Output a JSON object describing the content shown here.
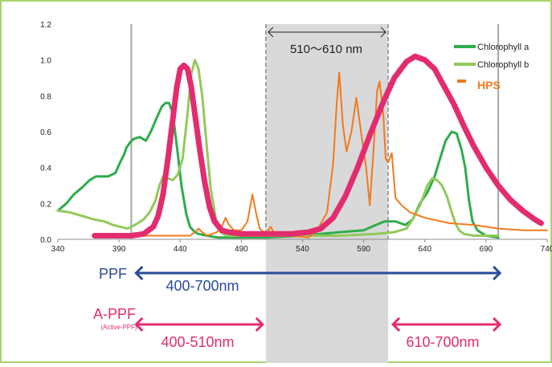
{
  "chart_data": {
    "type": "line",
    "xlim": [
      340,
      740
    ],
    "ylim": [
      0.0,
      1.2
    ],
    "x_ticks": [
      "340",
      "390",
      "440",
      "490",
      "540",
      "590",
      "640",
      "690",
      "740"
    ],
    "y_ticks": [
      "0.0",
      "0.2",
      "0.4",
      "0.6",
      "0.8",
      "1.0",
      "1.2"
    ],
    "grid": "none",
    "legend_position": "top-right",
    "vertical_lines": [
      400,
      700
    ],
    "shaded_band": {
      "from": 510,
      "to": 610,
      "label": "510～610 nm"
    },
    "series": [
      {
        "name": "Chlorophyll a",
        "color": "#2fac4d",
        "points": [
          [
            340,
            0.16
          ],
          [
            347,
            0.2
          ],
          [
            353,
            0.25
          ],
          [
            360,
            0.29
          ],
          [
            366,
            0.33
          ],
          [
            371,
            0.35
          ],
          [
            381,
            0.35
          ],
          [
            387,
            0.37
          ],
          [
            391,
            0.43
          ],
          [
            394,
            0.47
          ],
          [
            396,
            0.51
          ],
          [
            399,
            0.54
          ],
          [
            402,
            0.56
          ],
          [
            407,
            0.57
          ],
          [
            412,
            0.55
          ],
          [
            416,
            0.6
          ],
          [
            421,
            0.68
          ],
          [
            425,
            0.74
          ],
          [
            428,
            0.76
          ],
          [
            431,
            0.76
          ],
          [
            434,
            0.7
          ],
          [
            438,
            0.48
          ],
          [
            441,
            0.3
          ],
          [
            445,
            0.14
          ],
          [
            448,
            0.07
          ],
          [
            452,
            0.04
          ],
          [
            455,
            0.03
          ],
          [
            462,
            0.02
          ],
          [
            471,
            0.01
          ],
          [
            490,
            0.01
          ],
          [
            510,
            0.01
          ],
          [
            540,
            0.02
          ],
          [
            570,
            0.04
          ],
          [
            590,
            0.05
          ],
          [
            600,
            0.08
          ],
          [
            607,
            0.1
          ],
          [
            616,
            0.1
          ],
          [
            624,
            0.08
          ],
          [
            630,
            0.11
          ],
          [
            636,
            0.2
          ],
          [
            642,
            0.26
          ],
          [
            648,
            0.35
          ],
          [
            652,
            0.44
          ],
          [
            657,
            0.55
          ],
          [
            662,
            0.6
          ],
          [
            666,
            0.59
          ],
          [
            670,
            0.5
          ],
          [
            673,
            0.4
          ],
          [
            676,
            0.22
          ],
          [
            679,
            0.1
          ],
          [
            683,
            0.05
          ],
          [
            690,
            0.02
          ],
          [
            700,
            0.01
          ]
        ]
      },
      {
        "name": "Chlorophyll b",
        "color": "#93c95b",
        "points": [
          [
            340,
            0.16
          ],
          [
            350,
            0.15
          ],
          [
            360,
            0.13
          ],
          [
            370,
            0.11
          ],
          [
            378,
            0.1
          ],
          [
            385,
            0.08
          ],
          [
            391,
            0.07
          ],
          [
            397,
            0.06
          ],
          [
            403,
            0.08
          ],
          [
            410,
            0.11
          ],
          [
            415,
            0.15
          ],
          [
            420,
            0.22
          ],
          [
            423,
            0.3
          ],
          [
            426,
            0.35
          ],
          [
            430,
            0.34
          ],
          [
            434,
            0.33
          ],
          [
            438,
            0.36
          ],
          [
            442,
            0.45
          ],
          [
            446,
            0.7
          ],
          [
            449,
            0.92
          ],
          [
            452,
            1.0
          ],
          [
            455,
            0.95
          ],
          [
            458,
            0.8
          ],
          [
            462,
            0.5
          ],
          [
            465,
            0.28
          ],
          [
            469,
            0.12
          ],
          [
            473,
            0.04
          ],
          [
            478,
            0.02
          ],
          [
            490,
            0.02
          ],
          [
            510,
            0.02
          ],
          [
            540,
            0.02
          ],
          [
            570,
            0.02
          ],
          [
            600,
            0.03
          ],
          [
            615,
            0.04
          ],
          [
            625,
            0.06
          ],
          [
            630,
            0.11
          ],
          [
            636,
            0.19
          ],
          [
            642,
            0.3
          ],
          [
            646,
            0.34
          ],
          [
            650,
            0.33
          ],
          [
            654,
            0.3
          ],
          [
            658,
            0.24
          ],
          [
            662,
            0.15
          ],
          [
            665,
            0.09
          ],
          [
            668,
            0.05
          ],
          [
            672,
            0.03
          ],
          [
            680,
            0.02
          ],
          [
            700,
            0.02
          ]
        ]
      },
      {
        "name": "HPS",
        "color": "#f07a1e",
        "points": [
          [
            377,
            0.02
          ],
          [
            400,
            0.02
          ],
          [
            430,
            0.02
          ],
          [
            448,
            0.02
          ],
          [
            452,
            0.04
          ],
          [
            455,
            0.06
          ],
          [
            458,
            0.04
          ],
          [
            462,
            0.02
          ],
          [
            470,
            0.04
          ],
          [
            474,
            0.07
          ],
          [
            477,
            0.12
          ],
          [
            480,
            0.08
          ],
          [
            484,
            0.05
          ],
          [
            490,
            0.05
          ],
          [
            495,
            0.1
          ],
          [
            499,
            0.25
          ],
          [
            502,
            0.15
          ],
          [
            505,
            0.06
          ],
          [
            510,
            0.03
          ],
          [
            514,
            0.07
          ],
          [
            517,
            0.03
          ],
          [
            520,
            0.02
          ],
          [
            530,
            0.02
          ],
          [
            545,
            0.01
          ],
          [
            552,
            0.05
          ],
          [
            560,
            0.15
          ],
          [
            565,
            0.42
          ],
          [
            568,
            0.76
          ],
          [
            570,
            0.93
          ],
          [
            573,
            0.64
          ],
          [
            576,
            0.49
          ],
          [
            580,
            0.6
          ],
          [
            584,
            0.79
          ],
          [
            588,
            0.59
          ],
          [
            592,
            0.4
          ],
          [
            595,
            0.19
          ],
          [
            598,
            0.49
          ],
          [
            601,
            0.83
          ],
          [
            603,
            0.88
          ],
          [
            606,
            0.7
          ],
          [
            608,
            0.45
          ],
          [
            610,
            0.43
          ],
          [
            613,
            0.48
          ],
          [
            616,
            0.23
          ],
          [
            621,
            0.19
          ],
          [
            628,
            0.15
          ],
          [
            640,
            0.12
          ],
          [
            660,
            0.09
          ],
          [
            680,
            0.08
          ],
          [
            700,
            0.06
          ],
          [
            720,
            0.05
          ],
          [
            740,
            0.05
          ]
        ]
      },
      {
        "name": "",
        "color": "#e32c6f",
        "points": [
          [
            370,
            0.02
          ],
          [
            390,
            0.02
          ],
          [
            400,
            0.02
          ],
          [
            410,
            0.03
          ],
          [
            418,
            0.07
          ],
          [
            422,
            0.13
          ],
          [
            426,
            0.25
          ],
          [
            430,
            0.45
          ],
          [
            434,
            0.67
          ],
          [
            437,
            0.84
          ],
          [
            440,
            0.95
          ],
          [
            443,
            0.97
          ],
          [
            446,
            0.95
          ],
          [
            449,
            0.85
          ],
          [
            452,
            0.7
          ],
          [
            456,
            0.5
          ],
          [
            460,
            0.32
          ],
          [
            464,
            0.18
          ],
          [
            468,
            0.1
          ],
          [
            474,
            0.05
          ],
          [
            480,
            0.04
          ],
          [
            490,
            0.03
          ],
          [
            510,
            0.03
          ],
          [
            530,
            0.03
          ],
          [
            545,
            0.04
          ],
          [
            555,
            0.06
          ],
          [
            565,
            0.12
          ],
          [
            575,
            0.24
          ],
          [
            585,
            0.4
          ],
          [
            595,
            0.58
          ],
          [
            605,
            0.75
          ],
          [
            615,
            0.9
          ],
          [
            625,
            0.99
          ],
          [
            632,
            1.02
          ],
          [
            640,
            1.0
          ],
          [
            648,
            0.95
          ],
          [
            656,
            0.85
          ],
          [
            664,
            0.75
          ],
          [
            672,
            0.63
          ],
          [
            680,
            0.52
          ],
          [
            690,
            0.4
          ],
          [
            700,
            0.3
          ],
          [
            710,
            0.22
          ],
          [
            720,
            0.16
          ],
          [
            730,
            0.11
          ],
          [
            735,
            0.09
          ]
        ]
      }
    ],
    "legend": [
      {
        "label": "Chlorophyll a",
        "color": "#2fac4d"
      },
      {
        "label": "Chlorophyll b",
        "color": "#93c95b"
      },
      {
        "label": "HPS",
        "color": "#f07a1e"
      }
    ],
    "annotations": {
      "ppf": {
        "label": "PPF",
        "range_label": "400-700nm",
        "color": "#2a4b9b",
        "from": 400,
        "to": 700
      },
      "appf": {
        "label": "A-PPF",
        "sublabel": "(Active-PPF)",
        "color": "#e32c6f",
        "range1_label": "400-510nm",
        "range1": [
          400,
          510
        ],
        "range2_label": "610-700nm",
        "range2": [
          610,
          700
        ]
      }
    },
    "colors": {
      "frame": "#8dc63f",
      "band": "#d9d9d9",
      "vlines": "#a6a6a6",
      "axis": "#8c8c8c"
    }
  }
}
